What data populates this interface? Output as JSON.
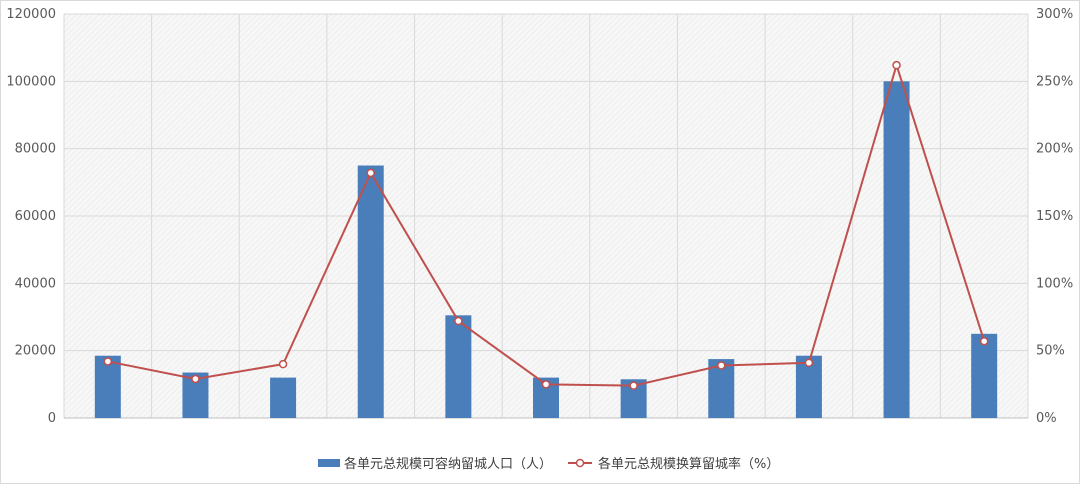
{
  "chart_data": {
    "type": "bar",
    "categories": [
      "",
      "",
      "",
      "",
      "",
      "",
      "",
      "",
      "",
      "",
      ""
    ],
    "series": [
      {
        "name": "各单元总规模可容纳留城人口（人）",
        "type": "bar",
        "axis": "left",
        "color": "#4a7ebb",
        "values": [
          18500,
          13500,
          12000,
          75000,
          30500,
          12000,
          11500,
          17500,
          18500,
          100000,
          25000
        ]
      },
      {
        "name": "各单元总规模换算留城率（%）",
        "type": "line",
        "axis": "right",
        "color": "#c0504d",
        "values": [
          42,
          29,
          40,
          182,
          72,
          25,
          24,
          39,
          41,
          262,
          57
        ]
      }
    ],
    "y_left": {
      "min": 0,
      "max": 120000,
      "step": 20000,
      "ticks": [
        "0",
        "20000",
        "40000",
        "60000",
        "80000",
        "100000",
        "120000"
      ]
    },
    "y_right": {
      "min": 0,
      "max": 300,
      "step": 50,
      "ticks": [
        "0%",
        "50%",
        "100%",
        "150%",
        "200%",
        "250%",
        "300%"
      ]
    },
    "title": "",
    "xlabel": "",
    "grid": true,
    "legend_position": "bottom"
  }
}
